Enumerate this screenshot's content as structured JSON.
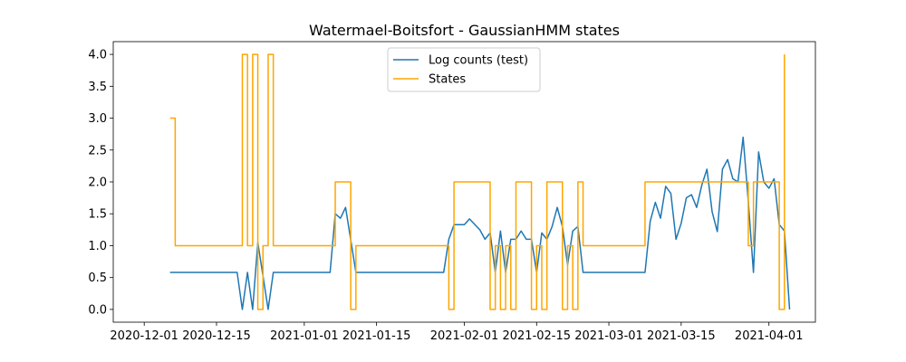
{
  "chart_data": {
    "type": "line",
    "title": "Watermael-Boitsfort - GaussianHMM states",
    "xlabel": "",
    "ylabel": "",
    "x_axis": {
      "type": "date",
      "ticks": [
        "2020-12-01",
        "2020-12-15",
        "2021-01-01",
        "2021-01-15",
        "2021-02-01",
        "2021-02-15",
        "2021-03-01",
        "2021-03-15",
        "2021-04-01"
      ],
      "range": [
        "2020-11-25",
        "2021-04-10"
      ]
    },
    "y_axis": {
      "ticks": [
        "0.0",
        "0.5",
        "1.0",
        "1.5",
        "2.0",
        "2.5",
        "3.0",
        "3.5",
        "4.0"
      ],
      "range": [
        -0.2,
        4.2
      ]
    },
    "grid": false,
    "legend_position": "top-center",
    "series": [
      {
        "name": "Log counts (test)",
        "color": "#1f77b4",
        "style": "line",
        "points": [
          [
            "2020-12-06",
            0.58
          ],
          [
            "2020-12-19",
            0.58
          ],
          [
            "2020-12-20",
            0.0
          ],
          [
            "2020-12-21",
            0.58
          ],
          [
            "2020-12-22",
            0.0
          ],
          [
            "2020-12-23",
            1.05
          ],
          [
            "2020-12-25",
            0.0
          ],
          [
            "2020-12-26",
            0.58
          ],
          [
            "2021-01-06",
            0.58
          ],
          [
            "2021-01-07",
            1.5
          ],
          [
            "2021-01-08",
            1.43
          ],
          [
            "2021-01-09",
            1.6
          ],
          [
            "2021-01-11",
            0.58
          ],
          [
            "2021-01-28",
            0.58
          ],
          [
            "2021-01-29",
            1.1
          ],
          [
            "2021-01-30",
            1.33
          ],
          [
            "2021-02-01",
            1.33
          ],
          [
            "2021-02-02",
            1.42
          ],
          [
            "2021-02-04",
            1.25
          ],
          [
            "2021-02-05",
            1.1
          ],
          [
            "2021-02-06",
            1.2
          ],
          [
            "2021-02-07",
            0.58
          ],
          [
            "2021-02-08",
            1.23
          ],
          [
            "2021-02-09",
            0.58
          ],
          [
            "2021-02-10",
            1.1
          ],
          [
            "2021-02-11",
            1.1
          ],
          [
            "2021-02-12",
            1.23
          ],
          [
            "2021-02-13",
            1.1
          ],
          [
            "2021-02-14",
            1.1
          ],
          [
            "2021-02-15",
            0.58
          ],
          [
            "2021-02-16",
            1.2
          ],
          [
            "2021-02-17",
            1.1
          ],
          [
            "2021-02-18",
            1.3
          ],
          [
            "2021-02-19",
            1.6
          ],
          [
            "2021-02-20",
            1.3
          ],
          [
            "2021-02-21",
            0.7
          ],
          [
            "2021-02-22",
            1.23
          ],
          [
            "2021-02-23",
            1.3
          ],
          [
            "2021-02-24",
            0.58
          ],
          [
            "2021-03-08",
            0.58
          ],
          [
            "2021-03-09",
            1.38
          ],
          [
            "2021-03-10",
            1.68
          ],
          [
            "2021-03-11",
            1.43
          ],
          [
            "2021-03-12",
            1.93
          ],
          [
            "2021-03-13",
            1.82
          ],
          [
            "2021-03-14",
            1.1
          ],
          [
            "2021-03-15",
            1.35
          ],
          [
            "2021-03-16",
            1.75
          ],
          [
            "2021-03-17",
            1.8
          ],
          [
            "2021-03-18",
            1.6
          ],
          [
            "2021-03-19",
            1.95
          ],
          [
            "2021-03-20",
            2.2
          ],
          [
            "2021-03-21",
            1.53
          ],
          [
            "2021-03-22",
            1.22
          ],
          [
            "2021-03-23",
            2.2
          ],
          [
            "2021-03-24",
            2.35
          ],
          [
            "2021-03-25",
            2.05
          ],
          [
            "2021-03-26",
            2.0
          ],
          [
            "2021-03-27",
            2.7
          ],
          [
            "2021-03-28",
            1.7
          ],
          [
            "2021-03-29",
            0.58
          ],
          [
            "2021-03-30",
            2.47
          ],
          [
            "2021-03-31",
            2.0
          ],
          [
            "2021-04-01",
            1.9
          ],
          [
            "2021-04-02",
            2.05
          ],
          [
            "2021-04-03",
            1.33
          ],
          [
            "2021-04-04",
            1.23
          ],
          [
            "2021-04-05",
            0.0
          ]
        ]
      },
      {
        "name": "States",
        "color": "#ffa500",
        "style": "steps-post",
        "points": [
          [
            "2020-12-06",
            3
          ],
          [
            "2020-12-07",
            1
          ],
          [
            "2020-12-20",
            4
          ],
          [
            "2020-12-21",
            1
          ],
          [
            "2020-12-22",
            4
          ],
          [
            "2020-12-23",
            0
          ],
          [
            "2020-12-24",
            1
          ],
          [
            "2020-12-25",
            4
          ],
          [
            "2020-12-26",
            1
          ],
          [
            "2021-01-07",
            2
          ],
          [
            "2021-01-10",
            0
          ],
          [
            "2021-01-11",
            1
          ],
          [
            "2021-01-29",
            0
          ],
          [
            "2021-01-30",
            2
          ],
          [
            "2021-02-06",
            0
          ],
          [
            "2021-02-07",
            1
          ],
          [
            "2021-02-08",
            0
          ],
          [
            "2021-02-09",
            1
          ],
          [
            "2021-02-10",
            0
          ],
          [
            "2021-02-11",
            2
          ],
          [
            "2021-02-14",
            0
          ],
          [
            "2021-02-15",
            1
          ],
          [
            "2021-02-16",
            0
          ],
          [
            "2021-02-17",
            2
          ],
          [
            "2021-02-20",
            0
          ],
          [
            "2021-02-21",
            1
          ],
          [
            "2021-02-22",
            0
          ],
          [
            "2021-02-23",
            2
          ],
          [
            "2021-02-24",
            1
          ],
          [
            "2021-03-08",
            2
          ],
          [
            "2021-03-28",
            1
          ],
          [
            "2021-03-29",
            2
          ],
          [
            "2021-04-03",
            0
          ],
          [
            "2021-04-04",
            4
          ]
        ]
      }
    ]
  }
}
